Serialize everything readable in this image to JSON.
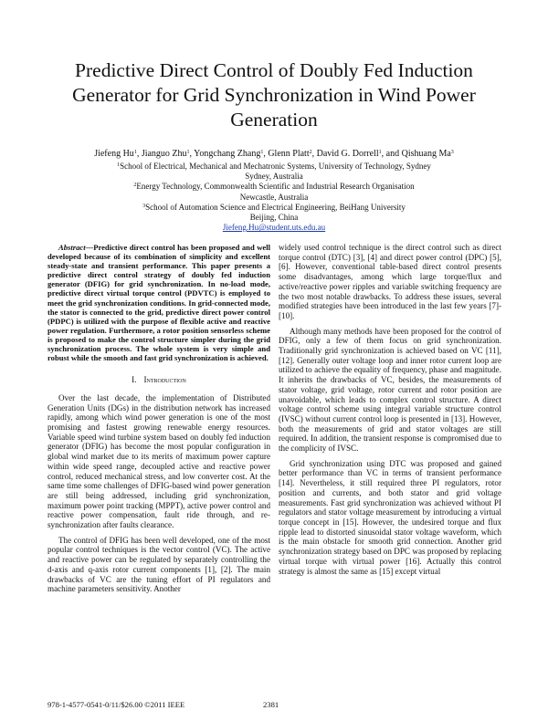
{
  "title": "Predictive Direct Control of Doubly Fed Induction Generator for Grid Synchronization in Wind Power Generation",
  "authors": [
    {
      "name": "Jiefeng Hu",
      "sup": "1",
      "after": ", "
    },
    {
      "name": "Jianguo Zhu",
      "sup": "1",
      "after": ", "
    },
    {
      "name": "Yongchang Zhang",
      "sup": "1",
      "after": ", "
    },
    {
      "name": "Glenn Platt",
      "sup": "2",
      "after": ", "
    },
    {
      "name": "David G. Dorrell",
      "sup": "1",
      "after": ", and "
    },
    {
      "name": "Qishuang Ma",
      "sup": "3"
    }
  ],
  "affiliations": [
    {
      "sup": "1",
      "org": "School of Electrical, Mechanical and Mechatronic Systems, University of Technology, Sydney",
      "place": "Sydney, Australia"
    },
    {
      "sup": "2",
      "org": "Energy Technology, Commonwealth Scientific and Industrial Research Organisation",
      "place": "Newcastle, Australia"
    },
    {
      "sup": "3",
      "org": "School of Automation Science and Electrical Engineering, BeiHang University",
      "place": "Beijing, China"
    }
  ],
  "email": "Jiefeng.Hu@student.uts.edu.au",
  "abstract": {
    "label": "Abstract—",
    "text": "Predictive direct control has been proposed and well developed because of its combination of simplicity and excellent steady-state and transient performance. This paper presents a predictive direct control strategy of doubly fed induction generator (DFIG) for grid synchronization. In no-load mode, predictive direct virtual torque control (PDVTC) is employed to meet the grid synchronization conditions. In grid-connected mode, the stator is connected to the grid, predictive direct power control (PDPC) is utilized with the purpose of flexible active and reactive power regulation. Furthermore, a rotor position sensorless scheme is proposed to make the control structure simpler during the grid synchronization process. The whole system is very simple and robust while the smooth and fast grid synchronization is achieved."
  },
  "section": {
    "number": "I.",
    "title": "Introduction"
  },
  "left_paragraphs": [
    "Over the last decade, the implementation of Distributed Generation Units (DGs) in the distribution network has increased rapidly, among which wind power generation is one of the most promising and fastest growing renewable energy resources. Variable speed wind turbine system based on doubly fed induction generator (DFIG) has become the most popular configuration in global wind market due to its merits of maximum power capture within wide speed range, decoupled active and reactive power control, reduced mechanical stress, and low converter cost. At the same time some challenges of DFIG-based wind power generation are still being addressed, including grid synchronization, maximum power point tracking (MPPT), active power control and reactive power compensation, fault ride through, and re-synchronization after faults clearance.",
    "The control of DFIG has been well developed, one of the most popular control techniques is the vector control (VC). The active and reactive power can be regulated by separately controlling the d-axis and q-axis rotor current components [1], [2]. The main drawbacks of VC are the tuning effort of PI regulators and machine parameters sensitivity. Another"
  ],
  "right_paragraphs": [
    "widely used control technique is the direct control such as direct torque control (DTC) [3], [4] and direct power control (DPC) [5], [6]. However, conventional table-based direct control presents some disadvantages, among which large torque/flux and active/reactive power ripples and variable switching frequency are the two most notable drawbacks. To address these issues, several modified strategies have been introduced in the last few years [7]-[10].",
    "Although many methods have been proposed for the control of DFIG, only a few of them focus on grid synchronization. Traditionally grid synchronization is achieved based on VC [11], [12]. Generally outer voltage loop and inner rotor current loop are utilized to achieve the equality of frequency, phase and magnitude. It inherits the drawbacks of VC, besides, the measurements of stator voltage, grid voltage, rotor current and rotor position are unavoidable, which leads to complex control structure. A direct voltage control scheme using integral variable structure control (IVSC) without current control loop is presented in [13]. However, both the measurements of grid and stator voltages are still required. In addition, the transient response is compromised due to the complicity of IVSC.",
    "Grid synchronization using DTC was proposed and gained better performance than VC in terms of transient performance [14]. Nevertheless, it still required three PI regulators, rotor position and currents, and both stator and grid voltage measurements. Fast grid synchronization was achieved without PI regulators and stator voltage measurement by introducing a virtual torque concept in [15]. However, the undesired torque and flux ripple lead to distorted sinusoidal stator voltage waveform, which is the main obstacle for smooth grid connection. Another grid synchronization strategy based on DPC was proposed by replacing virtual torque with virtual power [16]. Actually this control strategy is almost the same as [15] except virtual"
  ],
  "footer": {
    "isbn": "978-1-4577-0541-0/11/$26.00 ©2011 IEEE",
    "page": "2381"
  }
}
